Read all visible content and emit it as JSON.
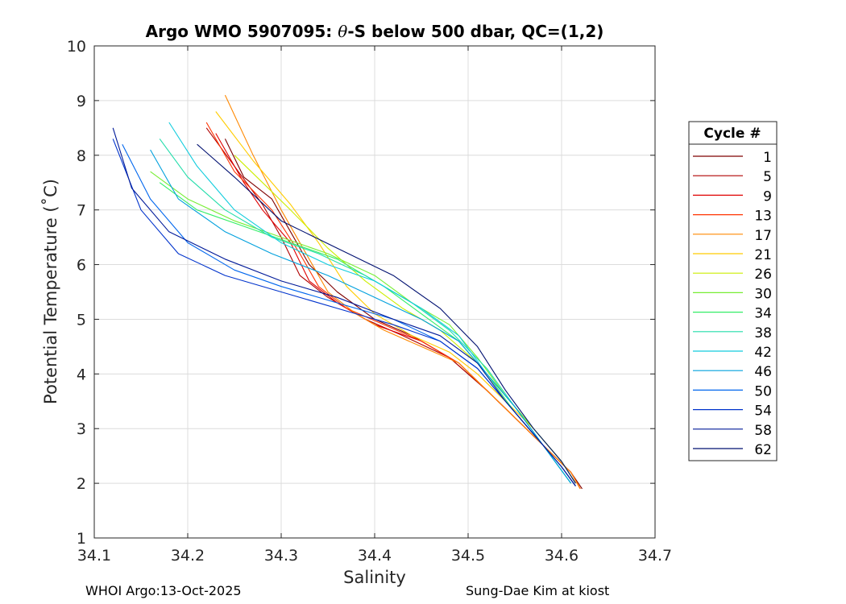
{
  "chart_data": {
    "type": "line",
    "title_prefix": "Argo WMO 5907095: ",
    "title_theta": "θ",
    "title_suffix": "-S below 500 dbar,  QC=(1,2)",
    "xlabel": "Salinity",
    "ylabel": "Potential Temperature (˚C)",
    "xlim": [
      34.1,
      34.7
    ],
    "ylim": [
      1,
      10
    ],
    "xticks": [
      "34.1",
      "34.2",
      "34.3",
      "34.4",
      "34.5",
      "34.6",
      "34.7"
    ],
    "yticks": [
      "1",
      "2",
      "3",
      "4",
      "5",
      "6",
      "7",
      "8",
      "9",
      "10"
    ],
    "grid": true,
    "legend": {
      "title": "Cycle #",
      "placement": "right",
      "entries": [
        {
          "label": "1",
          "color": "#7f0000"
        },
        {
          "label": "5",
          "color": "#b00000"
        },
        {
          "label": "9",
          "color": "#e00000"
        },
        {
          "label": "13",
          "color": "#ff3300"
        },
        {
          "label": "17",
          "color": "#ff8800"
        },
        {
          "label": "21",
          "color": "#ffcc00"
        },
        {
          "label": "26",
          "color": "#ccee00"
        },
        {
          "label": "30",
          "color": "#77ee33"
        },
        {
          "label": "34",
          "color": "#33ee66"
        },
        {
          "label": "38",
          "color": "#22ddaa"
        },
        {
          "label": "42",
          "color": "#11ccdd"
        },
        {
          "label": "46",
          "color": "#00a0dd"
        },
        {
          "label": "50",
          "color": "#0066ee"
        },
        {
          "label": "54",
          "color": "#0033cc"
        },
        {
          "label": "58",
          "color": "#001a99"
        },
        {
          "label": "62",
          "color": "#001070"
        }
      ]
    },
    "series": [
      {
        "name": "1",
        "color": "#7f0000",
        "x": [
          34.24,
          34.26,
          34.29,
          34.31,
          34.33,
          34.36,
          34.4,
          34.44,
          34.48,
          34.52,
          34.55,
          34.58,
          34.61,
          34.622
        ],
        "y": [
          8.3,
          7.6,
          7.2,
          6.6,
          6.0,
          5.5,
          5.0,
          4.7,
          4.3,
          3.7,
          3.2,
          2.7,
          2.2,
          1.9
        ]
      },
      {
        "name": "5",
        "color": "#b00000",
        "x": [
          34.22,
          34.25,
          34.28,
          34.3,
          34.32,
          34.35,
          34.39,
          34.43,
          34.48,
          34.52,
          34.55,
          34.58,
          34.61,
          34.62
        ],
        "y": [
          8.5,
          7.8,
          7.1,
          6.5,
          5.8,
          5.4,
          5.0,
          4.7,
          4.3,
          3.7,
          3.2,
          2.7,
          2.2,
          1.9
        ]
      },
      {
        "name": "9",
        "color": "#e00000",
        "x": [
          34.23,
          34.26,
          34.28,
          34.31,
          34.33,
          34.36,
          34.4,
          34.45,
          34.49,
          34.52,
          34.55,
          34.58,
          34.61,
          34.62
        ],
        "y": [
          8.4,
          7.5,
          7.0,
          6.4,
          5.7,
          5.3,
          4.9,
          4.6,
          4.2,
          3.7,
          3.2,
          2.7,
          2.2,
          1.9
        ]
      },
      {
        "name": "13",
        "color": "#ff3300",
        "x": [
          34.22,
          34.25,
          34.29,
          34.32,
          34.34,
          34.37,
          34.41,
          34.45,
          34.49,
          34.52,
          34.55,
          34.58,
          34.61,
          34.62
        ],
        "y": [
          8.6,
          7.7,
          7.0,
          6.2,
          5.6,
          5.2,
          4.9,
          4.6,
          4.2,
          3.7,
          3.2,
          2.7,
          2.2,
          1.9
        ]
      },
      {
        "name": "17",
        "color": "#ff8800",
        "x": [
          34.24,
          34.27,
          34.3,
          34.33,
          34.35,
          34.38,
          34.41,
          34.45,
          34.49,
          34.52,
          34.55,
          34.58,
          34.61,
          34.62
        ],
        "y": [
          9.1,
          8.0,
          7.0,
          6.1,
          5.5,
          5.1,
          4.8,
          4.5,
          4.2,
          3.7,
          3.2,
          2.7,
          2.2,
          1.9
        ]
      },
      {
        "name": "21",
        "color": "#ffcc00",
        "x": [
          34.23,
          34.27,
          34.31,
          34.34,
          34.37,
          34.4,
          34.44,
          34.48,
          34.51,
          34.54,
          34.57,
          34.6,
          34.615
        ],
        "y": [
          8.8,
          7.9,
          7.1,
          6.4,
          5.6,
          5.1,
          4.7,
          4.4,
          4.0,
          3.5,
          3.0,
          2.4,
          2.0
        ]
      },
      {
        "name": "26",
        "color": "#ccee00",
        "x": [
          34.25,
          34.28,
          34.31,
          34.35,
          34.39,
          34.43,
          34.47,
          34.51,
          34.54,
          34.57,
          34.6,
          34.615
        ],
        "y": [
          8.0,
          7.5,
          7.0,
          6.3,
          5.7,
          5.2,
          4.8,
          4.2,
          3.6,
          3.0,
          2.4,
          2.0
        ]
      },
      {
        "name": "30",
        "color": "#77ee33",
        "x": [
          34.16,
          34.2,
          34.25,
          34.3,
          34.35,
          34.4,
          34.44,
          34.48,
          34.51,
          34.54,
          34.57,
          34.6,
          34.615
        ],
        "y": [
          7.7,
          7.2,
          6.8,
          6.5,
          6.2,
          5.8,
          5.3,
          4.9,
          4.3,
          3.6,
          3.0,
          2.4,
          2.0
        ]
      },
      {
        "name": "34",
        "color": "#33ee66",
        "x": [
          34.17,
          34.21,
          34.26,
          34.31,
          34.36,
          34.41,
          34.45,
          34.49,
          34.52,
          34.55,
          34.58,
          34.61
        ],
        "y": [
          7.5,
          7.0,
          6.7,
          6.4,
          6.1,
          5.6,
          5.1,
          4.6,
          4.0,
          3.3,
          2.7,
          2.0
        ]
      },
      {
        "name": "38",
        "color": "#22ddaa",
        "x": [
          34.17,
          34.2,
          34.24,
          34.29,
          34.34,
          34.39,
          34.44,
          34.48,
          34.52,
          34.55,
          34.58,
          34.61
        ],
        "y": [
          8.3,
          7.6,
          7.0,
          6.5,
          6.2,
          5.8,
          5.3,
          4.8,
          4.1,
          3.4,
          2.7,
          2.0
        ]
      },
      {
        "name": "42",
        "color": "#11ccdd",
        "x": [
          34.18,
          34.21,
          34.25,
          34.3,
          34.35,
          34.4,
          34.45,
          34.49,
          34.52,
          34.55,
          34.58,
          34.61
        ],
        "y": [
          8.6,
          7.8,
          7.0,
          6.4,
          6.0,
          5.7,
          5.2,
          4.7,
          4.0,
          3.4,
          2.7,
          2.0
        ]
      },
      {
        "name": "46",
        "color": "#00a0dd",
        "x": [
          34.16,
          34.19,
          34.24,
          34.29,
          34.35,
          34.4,
          34.45,
          34.49,
          34.52,
          34.55,
          34.58,
          34.61
        ],
        "y": [
          8.1,
          7.2,
          6.6,
          6.2,
          5.8,
          5.4,
          5.0,
          4.6,
          4.0,
          3.4,
          2.7,
          2.0
        ]
      },
      {
        "name": "50",
        "color": "#0066ee",
        "x": [
          34.13,
          34.16,
          34.2,
          34.25,
          34.3,
          34.36,
          34.42,
          34.47,
          34.51,
          34.54,
          34.57,
          34.6,
          34.615
        ],
        "y": [
          8.2,
          7.2,
          6.4,
          5.9,
          5.6,
          5.3,
          5.0,
          4.6,
          4.1,
          3.5,
          2.9,
          2.3,
          1.95
        ]
      },
      {
        "name": "54",
        "color": "#0033cc",
        "x": [
          34.12,
          34.15,
          34.19,
          34.24,
          34.3,
          34.36,
          34.42,
          34.47,
          34.51,
          34.54,
          34.57,
          34.6,
          34.615
        ],
        "y": [
          8.3,
          7.0,
          6.2,
          5.8,
          5.5,
          5.2,
          4.9,
          4.6,
          4.1,
          3.5,
          2.9,
          2.3,
          1.95
        ]
      },
      {
        "name": "58",
        "color": "#001a99",
        "x": [
          34.12,
          34.14,
          34.18,
          34.24,
          34.3,
          34.36,
          34.42,
          34.47,
          34.51,
          34.54,
          34.57,
          34.6,
          34.615
        ],
        "y": [
          8.5,
          7.4,
          6.6,
          6.1,
          5.7,
          5.4,
          5.0,
          4.7,
          4.2,
          3.5,
          2.9,
          2.3,
          1.95
        ]
      },
      {
        "name": "62",
        "color": "#001070",
        "x": [
          34.21,
          34.25,
          34.3,
          34.36,
          34.42,
          34.47,
          34.51,
          34.54,
          34.57,
          34.6,
          34.615
        ],
        "y": [
          8.2,
          7.6,
          6.8,
          6.3,
          5.8,
          5.2,
          4.5,
          3.7,
          3.0,
          2.4,
          2.0
        ]
      }
    ]
  },
  "footer": {
    "left": "WHOI Argo:13-Oct-2025",
    "right": "Sung-Dae Kim at kiost"
  }
}
